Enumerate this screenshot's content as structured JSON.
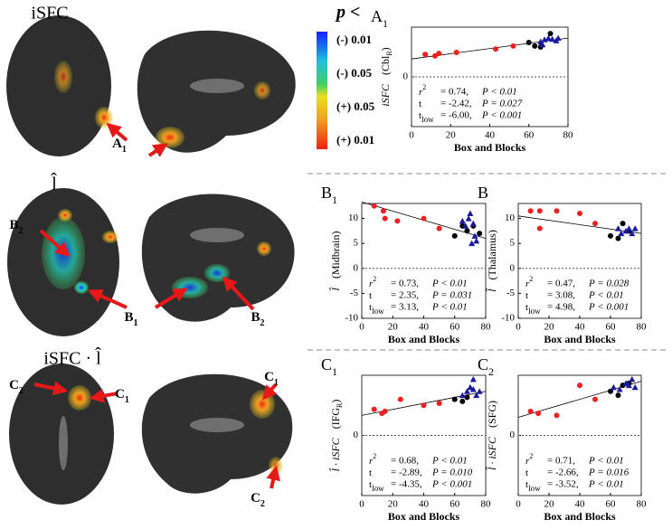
{
  "figure": {
    "row_titles": [
      "iSFC",
      "l̂",
      "iSFC · l̂"
    ],
    "arrow_labels": [
      {
        "text": "A",
        "sub": "1"
      },
      {
        "text": "B",
        "sub": "2"
      },
      {
        "text": "B",
        "sub": "1"
      },
      {
        "text": "B",
        "sub": "2"
      },
      {
        "text": "C",
        "sub": "2"
      },
      {
        "text": "C",
        "sub": "1"
      },
      {
        "text": "C",
        "sub": "1"
      },
      {
        "text": "C",
        "sub": "2"
      }
    ],
    "colorbar": {
      "title": "p <",
      "labels": [
        {
          "text": "(-) 0.01",
          "color": "#1a3fd0"
        },
        {
          "text": "(-) 0.05",
          "color": "#12a0a0"
        },
        {
          "text": "(+) 0.05",
          "color": "#d07a10"
        },
        {
          "text": "(+) 0.01",
          "color": "#9a1010"
        }
      ]
    }
  },
  "chart_data": [
    {
      "type": "scatter",
      "title": "A",
      "title_sub": "1",
      "ylabel": "iSFC",
      "region": "(Cbl",
      "region_sub": "R",
      "region_end": ")",
      "xlabel": "Box and Blocks",
      "xlim": [
        0,
        80
      ],
      "xticks": [
        0,
        20,
        40,
        60,
        80
      ],
      "ylim": [
        -1,
        1
      ],
      "yticks": [
        0
      ],
      "zero_line": true,
      "series": [
        {
          "color": "#f02020",
          "marker": "circle",
          "x": [
            7,
            12,
            14,
            23,
            43,
            52
          ],
          "values": [
            0.45,
            0.42,
            0.47,
            0.49,
            0.56,
            0.62
          ]
        },
        {
          "color": "#000000",
          "marker": "circle",
          "x": [
            60,
            63,
            66,
            71
          ],
          "values": [
            0.69,
            0.62,
            0.6,
            0.87
          ]
        },
        {
          "color": "#1a1aa0",
          "marker": "triangle",
          "x": [
            66,
            67,
            68,
            70,
            72,
            74,
            75
          ],
          "values": [
            0.71,
            0.65,
            0.75,
            0.78,
            0.76,
            0.73,
            0.78
          ]
        }
      ],
      "fit": {
        "x": [
          0,
          80
        ],
        "values": [
          0.36,
          0.78
        ]
      },
      "stats": [
        {
          "name": "r",
          "sup": "2",
          "sub": "",
          "value": "= 0.74,",
          "p": "P < 0.01"
        },
        {
          "name": "t",
          "sup": "",
          "sub": "",
          "value": "= -2.42,",
          "p": "P = 0.027"
        },
        {
          "name": "t",
          "sup": "",
          "sub": "low",
          "value": "= -6.00,",
          "p": "P < 0.001"
        }
      ]
    },
    {
      "type": "scatter",
      "title": "B",
      "title_sub": "1",
      "ylabel": "l̂",
      "region": "(Midbrain)",
      "region_sub": "",
      "region_end": "",
      "xlabel": "Box and Blocks",
      "xlim": [
        0,
        80
      ],
      "xticks": [
        0,
        20,
        40,
        60,
        80
      ],
      "ylim": [
        -10,
        13
      ],
      "yticks": [
        -10,
        -5,
        0,
        5,
        10
      ],
      "zero_line": true,
      "series": [
        {
          "color": "#f02020",
          "marker": "circle",
          "x": [
            8,
            14,
            15,
            23,
            40,
            50
          ],
          "values": [
            12.5,
            11.5,
            10,
            9.5,
            10,
            8
          ]
        },
        {
          "color": "#000000",
          "marker": "circle",
          "x": [
            60,
            65,
            68,
            72,
            76
          ],
          "values": [
            6.5,
            8.5,
            7.5,
            8.5,
            7
          ]
        },
        {
          "color": "#1a1aa0",
          "marker": "triangle",
          "x": [
            65,
            67,
            69,
            70,
            71,
            72,
            73,
            74
          ],
          "values": [
            9.5,
            8.5,
            10,
            11,
            5,
            9,
            6.5,
            5.5
          ]
        }
      ],
      "fit": {
        "x": [
          0,
          80
        ],
        "values": [
          13.3,
          6
        ]
      },
      "stats": [
        {
          "name": "r",
          "sup": "2",
          "sub": "",
          "value": "= 0.73,",
          "p": "P < 0.01"
        },
        {
          "name": "t",
          "sup": "",
          "sub": "",
          "value": "= 2.35,",
          "p": "P = 0.031"
        },
        {
          "name": "t",
          "sup": "",
          "sub": "low",
          "value": "= 3.13,",
          "p": "P < 0.01"
        }
      ]
    },
    {
      "type": "scatter",
      "title": "B",
      "title_sub": "",
      "ylabel": "l̂",
      "region": "(Thalamus)",
      "region_sub": "",
      "region_end": "",
      "xlabel": "Box and Blocks",
      "xlim": [
        0,
        80
      ],
      "xticks": [
        0,
        20,
        40,
        60,
        80
      ],
      "ylim": [
        -10,
        13
      ],
      "yticks": [
        -10,
        -5,
        0,
        5,
        10
      ],
      "zero_line": true,
      "series": [
        {
          "color": "#f02020",
          "marker": "circle",
          "x": [
            8,
            14,
            14,
            25,
            40,
            50
          ],
          "values": [
            11.5,
            11.5,
            8,
            11.5,
            11,
            9
          ]
        },
        {
          "color": "#000000",
          "marker": "circle",
          "x": [
            60,
            65,
            68,
            72
          ],
          "values": [
            6.5,
            6,
            9,
            7.5
          ]
        },
        {
          "color": "#1a1aa0",
          "marker": "triangle",
          "x": [
            65,
            67,
            70,
            72,
            74,
            76
          ],
          "values": [
            8,
            7,
            7.5,
            8,
            7,
            8
          ]
        }
      ],
      "fit": {
        "x": [
          0,
          80
        ],
        "values": [
          10.5,
          7
        ]
      },
      "stats": [
        {
          "name": "r",
          "sup": "2",
          "sub": "",
          "value": "= 0.47,",
          "p": "P = 0.028"
        },
        {
          "name": "t",
          "sup": "",
          "sub": "",
          "value": "= 3.08,",
          "p": "P < 0.01"
        },
        {
          "name": "t",
          "sup": "",
          "sub": "low",
          "value": "= 4.98,",
          "p": "P < 0.001"
        }
      ]
    },
    {
      "type": "scatter",
      "title": "C",
      "title_sub": "1",
      "ylabel": "l̂ · iSFC",
      "region": "(IFG",
      "region_sub": "R",
      "region_end": ")",
      "xlabel": "Box and Blocks",
      "xlim": [
        0,
        80
      ],
      "xticks": [
        0,
        20,
        40,
        60,
        80
      ],
      "ylim": [
        -3,
        3
      ],
      "yticks": [
        0
      ],
      "zero_line": true,
      "series": [
        {
          "color": "#f02020",
          "marker": "circle",
          "x": [
            8,
            13,
            15,
            25,
            40,
            50
          ],
          "values": [
            1.3,
            1.1,
            1.2,
            1.8,
            1.5,
            1.6
          ]
        },
        {
          "color": "#000000",
          "marker": "circle",
          "x": [
            60,
            65,
            68
          ],
          "values": [
            1.8,
            1.7,
            1.9
          ]
        },
        {
          "color": "#1a1aa0",
          "marker": "triangle",
          "x": [
            65,
            68,
            70,
            72,
            72,
            74,
            76
          ],
          "values": [
            2,
            2.2,
            2.4,
            2.3,
            2.8,
            2,
            2.2
          ]
        }
      ],
      "fit": {
        "x": [
          0,
          80
        ],
        "values": [
          1,
          2.2
        ]
      },
      "stats": [
        {
          "name": "r",
          "sup": "2",
          "sub": "",
          "value": "= 0.68,",
          "p": "P < 0.01"
        },
        {
          "name": "t",
          "sup": "",
          "sub": "",
          "value": "= -2.89,",
          "p": "P = 0.010"
        },
        {
          "name": "t",
          "sup": "",
          "sub": "low",
          "value": "= -4.35,",
          "p": "P < 0.001"
        }
      ]
    },
    {
      "type": "scatter",
      "title": "C",
      "title_sub": "2",
      "ylabel": "l̂ · iSFC",
      "region": "(SFG)",
      "region_sub": "",
      "region_end": "",
      "xlabel": "Box and Blocks",
      "xlim": [
        0,
        80
      ],
      "xticks": [
        0,
        20,
        40,
        60,
        80
      ],
      "ylim": [
        -3,
        3
      ],
      "yticks": [
        0
      ],
      "zero_line": true,
      "series": [
        {
          "color": "#f02020",
          "marker": "circle",
          "x": [
            8,
            13,
            25,
            40,
            50
          ],
          "values": [
            1.2,
            1.1,
            1,
            2.5,
            1.8
          ]
        },
        {
          "color": "#000000",
          "marker": "circle",
          "x": [
            60,
            65,
            68,
            72
          ],
          "values": [
            2.2,
            2,
            2.5,
            2.6
          ]
        },
        {
          "color": "#1a1aa0",
          "marker": "triangle",
          "x": [
            62,
            66,
            70,
            72,
            74,
            76
          ],
          "values": [
            2.4,
            2.3,
            2.6,
            2.5,
            2.8,
            2.4
          ]
        }
      ],
      "fit": {
        "x": [
          0,
          80
        ],
        "values": [
          0.9,
          2.7
        ]
      },
      "stats": [
        {
          "name": "r",
          "sup": "2",
          "sub": "",
          "value": "= 0.71,",
          "p": "P < 0.01"
        },
        {
          "name": "t",
          "sup": "",
          "sub": "",
          "value": "= -2.66,",
          "p": "P = 0.016"
        },
        {
          "name": "t",
          "sup": "",
          "sub": "low",
          "value": "= -3.52,",
          "p": "P < 0.01"
        }
      ]
    }
  ]
}
